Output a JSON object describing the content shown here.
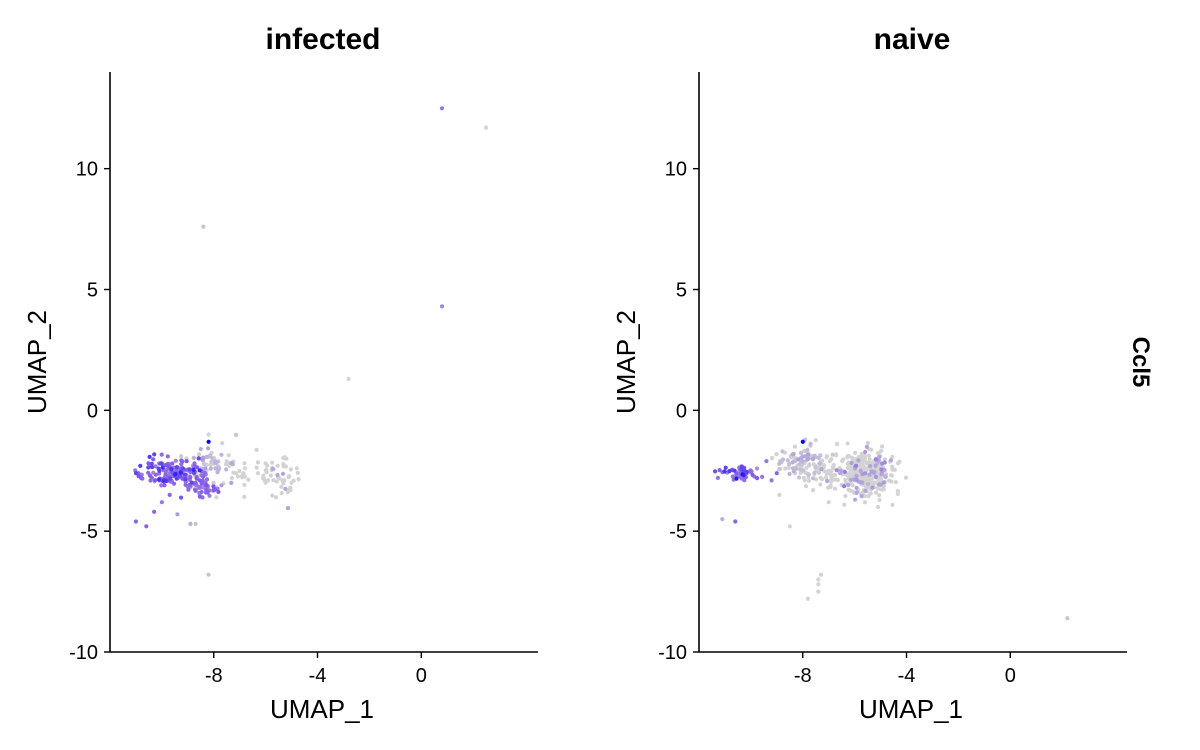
{
  "feature_label": "Ccl5",
  "colors": {
    "low": "#d3d3d3",
    "mid": "#8a63e6",
    "high": "#0000ff",
    "axis": "#000000"
  },
  "chart_data": [
    {
      "type": "scatter",
      "title": "infected",
      "xlabel": "UMAP_1",
      "ylabel": "UMAP_2",
      "xlim": [
        -12,
        4.5
      ],
      "ylim": [
        -10,
        14
      ],
      "xticks": [
        -8,
        -4,
        0
      ],
      "yticks": [
        -10,
        -5,
        0,
        5,
        10
      ],
      "xtick_labels": [
        "-8",
        "-4",
        "0"
      ],
      "ytick_labels": [
        "-10",
        "-5",
        "0",
        "5",
        "10"
      ],
      "points": [
        {
          "x": 0.8,
          "y": 12.5,
          "v": 0.5
        },
        {
          "x": 2.5,
          "y": 11.7,
          "v": 0.0
        },
        {
          "x": -8.4,
          "y": 7.6,
          "v": 0.1
        },
        {
          "x": 0.8,
          "y": 4.3,
          "v": 0.4
        },
        {
          "x": -2.8,
          "y": 1.3,
          "v": 0.0
        },
        {
          "x": -8.2,
          "y": -6.8,
          "v": 0.1
        },
        {
          "x": -8.2,
          "y": -1.3,
          "v": 1.0
        },
        {
          "x": -8.2,
          "y": -1.0,
          "v": 0.0
        },
        {
          "x": -8.5,
          "y": -1.6,
          "v": 0.2
        },
        {
          "x": -11.0,
          "y": -4.6,
          "v": 0.6
        },
        {
          "x": -10.6,
          "y": -4.8,
          "v": 0.6
        },
        {
          "x": -10.3,
          "y": -4.2,
          "v": 0.6
        },
        {
          "x": -10.0,
          "y": -3.8,
          "v": 0.5
        },
        {
          "x": -9.7,
          "y": -3.5,
          "v": 0.6
        },
        {
          "x": -9.4,
          "y": -4.3,
          "v": 0.3
        },
        {
          "x": -8.9,
          "y": -4.7,
          "v": 0.2
        },
        {
          "x": -8.7,
          "y": -4.7,
          "v": 0.1
        },
        {
          "x": -10.8,
          "y": -2.8,
          "v": 0.6
        },
        {
          "x": -10.9,
          "y": -2.6,
          "v": 0.6
        },
        {
          "x": -10.4,
          "y": -2.3,
          "v": 0.6
        },
        {
          "x": -10.1,
          "y": -2.2,
          "v": 0.6
        },
        {
          "x": -9.6,
          "y": -2.2,
          "v": 0.6
        },
        {
          "x": -9.3,
          "y": -2.4,
          "v": 0.5
        },
        {
          "x": -8.7,
          "y": -3.0,
          "v": 0.6
        },
        {
          "x": -8.3,
          "y": -3.4,
          "v": 0.6
        },
        {
          "x": -8.0,
          "y": -3.3,
          "v": 0.6
        },
        {
          "x": -7.7,
          "y": -3.1,
          "v": 0.3
        },
        {
          "x": -7.3,
          "y": -2.8,
          "v": 0.0
        },
        {
          "x": -6.8,
          "y": -2.4,
          "v": 0.0
        },
        {
          "x": -6.3,
          "y": -2.6,
          "v": 0.0
        },
        {
          "x": -5.8,
          "y": -2.7,
          "v": 0.0
        },
        {
          "x": -5.3,
          "y": -2.3,
          "v": 0.0
        },
        {
          "x": -5.0,
          "y": -3.0,
          "v": 0.0
        },
        {
          "x": -4.8,
          "y": -2.4,
          "v": 0.0
        },
        {
          "x": -5.6,
          "y": -3.6,
          "v": 0.0
        },
        {
          "x": -7.9,
          "y": -3.6,
          "v": 0.0
        },
        {
          "x": -7.5,
          "y": -2.1,
          "v": 0.0
        },
        {
          "x": -6.0,
          "y": -2.2,
          "v": 0.0
        },
        {
          "x": -5.2,
          "y": -2.0,
          "v": 0.0
        },
        {
          "x": -9.9,
          "y": -3.1,
          "v": 0.6
        }
      ],
      "clusters": [
        {
          "cx": -9.6,
          "cy": -2.6,
          "sx": 0.55,
          "sy": 0.28,
          "n": 150,
          "v": 0.6
        },
        {
          "cx": -8.4,
          "cy": -3.2,
          "sx": 0.35,
          "sy": 0.25,
          "n": 40,
          "v": 0.55
        },
        {
          "cx": -8.2,
          "cy": -2.2,
          "sx": 0.45,
          "sy": 0.35,
          "n": 60,
          "v": 0.1
        },
        {
          "cx": -6.5,
          "cy": -2.6,
          "sx": 0.9,
          "sy": 0.35,
          "n": 40,
          "v": 0.0
        },
        {
          "cx": -5.3,
          "cy": -2.7,
          "sx": 0.35,
          "sy": 0.4,
          "n": 25,
          "v": 0.0
        }
      ]
    },
    {
      "type": "scatter",
      "title": "naive",
      "xlabel": "UMAP_1",
      "ylabel": "UMAP_2",
      "xlim": [
        -12,
        4.5
      ],
      "ylim": [
        -10,
        14
      ],
      "xticks": [
        -8,
        -4,
        0
      ],
      "yticks": [
        -10,
        -5,
        0,
        5,
        10
      ],
      "xtick_labels": [
        "-8",
        "-4",
        "0"
      ],
      "ytick_labels": [
        "-10",
        "-5",
        "0",
        "5",
        "10"
      ],
      "points": [
        {
          "x": 2.2,
          "y": -8.6,
          "v": 0.1
        },
        {
          "x": -7.8,
          "y": -7.8,
          "v": 0.0
        },
        {
          "x": -7.4,
          "y": -7.5,
          "v": 0.0
        },
        {
          "x": -7.4,
          "y": -7.2,
          "v": 0.0
        },
        {
          "x": -7.3,
          "y": -6.8,
          "v": 0.0
        },
        {
          "x": -7.4,
          "y": -7.0,
          "v": 0.0
        },
        {
          "x": -8.5,
          "y": -4.8,
          "v": 0.0
        },
        {
          "x": -11.1,
          "y": -4.5,
          "v": 0.2
        },
        {
          "x": -10.6,
          "y": -4.6,
          "v": 0.6
        },
        {
          "x": -8.0,
          "y": -1.3,
          "v": 1.0
        },
        {
          "x": -9.4,
          "y": -2.1,
          "v": 0.5
        },
        {
          "x": -9.0,
          "y": -2.6,
          "v": 0.6
        },
        {
          "x": -9.2,
          "y": -2.9,
          "v": 0.5
        },
        {
          "x": -8.9,
          "y": -3.5,
          "v": 0.0
        },
        {
          "x": -7.6,
          "y": -3.3,
          "v": 0.0
        },
        {
          "x": -7.0,
          "y": -3.8,
          "v": 0.0
        },
        {
          "x": -6.4,
          "y": -3.9,
          "v": 0.0
        },
        {
          "x": -5.6,
          "y": -3.8,
          "v": 0.0
        },
        {
          "x": -5.1,
          "y": -4.0,
          "v": 0.0
        },
        {
          "x": -7.9,
          "y": -1.2,
          "v": 0.0
        },
        {
          "x": -8.3,
          "y": -1.5,
          "v": 0.0
        }
      ],
      "clusters": [
        {
          "cx": -10.5,
          "cy": -2.6,
          "sx": 0.35,
          "sy": 0.17,
          "n": 55,
          "v": 0.6
        },
        {
          "cx": -8.0,
          "cy": -2.1,
          "sx": 0.45,
          "sy": 0.35,
          "n": 80,
          "v": 0.05
        },
        {
          "cx": -7.2,
          "cy": -2.5,
          "sx": 0.5,
          "sy": 0.3,
          "n": 50,
          "v": 0.0
        },
        {
          "cx": -5.6,
          "cy": -2.6,
          "sx": 0.55,
          "sy": 0.45,
          "n": 320,
          "v": 0.0
        },
        {
          "cx": -5.5,
          "cy": -2.6,
          "sx": 0.5,
          "sy": 0.4,
          "n": 25,
          "v": 0.3
        }
      ]
    }
  ]
}
